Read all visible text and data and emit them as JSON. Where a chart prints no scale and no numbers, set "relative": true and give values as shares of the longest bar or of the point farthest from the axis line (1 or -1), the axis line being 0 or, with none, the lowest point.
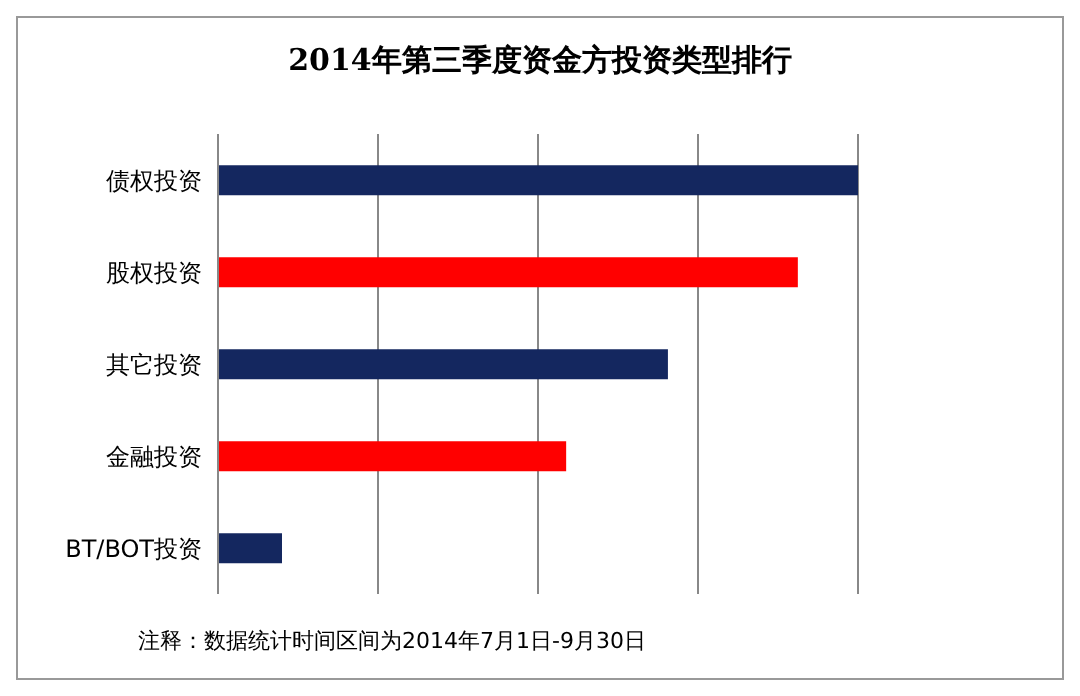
{
  "chart_data": {
    "type": "bar",
    "orientation": "horizontal",
    "relative": true,
    "title": "2014年第三季度资金方投资类型排行",
    "categories": [
      "债权投资",
      "股权投资",
      "其它投资",
      "金融投资",
      "BT/BOT投资"
    ],
    "values": [
      1,
      0.906,
      0.703,
      0.544,
      0.1
    ],
    "colors": [
      "#14275f",
      "#ff0000",
      "#14275f",
      "#ff0000",
      "#14275f"
    ],
    "grid": "x",
    "annotations": [
      "注释：数据统计时间区间为2014年7月1日-9月30日"
    ]
  }
}
